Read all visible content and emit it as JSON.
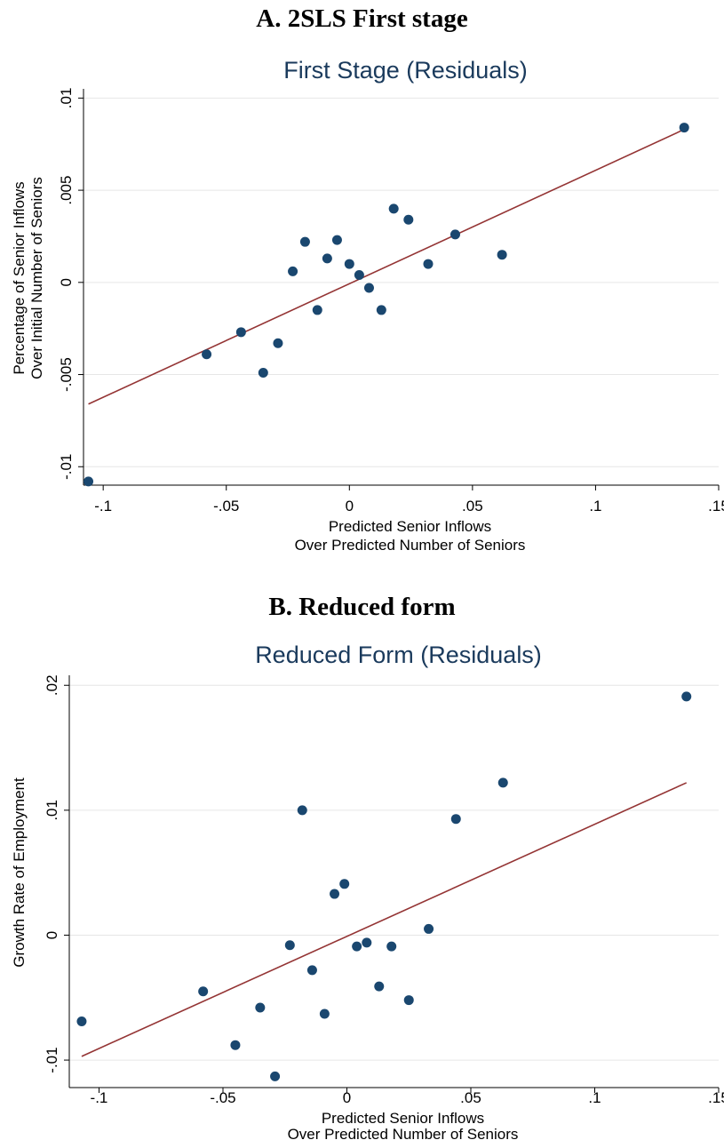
{
  "panels": [
    {
      "heading": "A. 2SLS First stage"
    },
    {
      "heading": "B. Reduced form"
    }
  ],
  "chart_data": [
    {
      "type": "scatter",
      "title": "First Stage (Residuals)",
      "xlabel": [
        "Predicted Senior Inflows",
        "Over Predicted Number of Seniors"
      ],
      "ylabel": [
        "Percentage of Senior Inflows",
        "Over Initial Number of Seniors"
      ],
      "xlim": [
        -0.108,
        0.15
      ],
      "ylim": [
        -0.011,
        0.0105
      ],
      "xticks": [
        -0.1,
        -0.05,
        0,
        0.05,
        0.1,
        0.15
      ],
      "xtick_labels": [
        "-.1",
        "-.05",
        "0",
        ".05",
        ".1",
        ".15"
      ],
      "yticks": [
        -0.01,
        -0.005,
        0,
        0.005,
        0.01
      ],
      "ytick_labels": [
        "-.01",
        "-.005",
        "0",
        ".005",
        ".01"
      ],
      "grid": true,
      "marker_color": "#1a476f",
      "fit_color": "#943434",
      "points": {
        "x": [
          -0.106,
          -0.058,
          -0.044,
          -0.035,
          -0.029,
          -0.023,
          -0.018,
          -0.013,
          -0.009,
          -0.005,
          0.0,
          0.004,
          0.008,
          0.013,
          0.018,
          0.024,
          0.032,
          0.043,
          0.062,
          0.136
        ],
        "y": [
          -0.0108,
          -0.0039,
          -0.0027,
          -0.0049,
          -0.0033,
          0.0006,
          0.0022,
          -0.0015,
          0.0013,
          0.0023,
          0.001,
          0.0004,
          -0.0003,
          -0.0015,
          0.004,
          0.0034,
          0.001,
          0.0026,
          0.0015,
          0.0084
        ]
      },
      "fit_line": {
        "x": [
          -0.106,
          0.136
        ],
        "y": [
          -0.0066,
          0.0083
        ]
      }
    },
    {
      "type": "scatter",
      "title": "Reduced Form (Residuals)",
      "xlabel": [
        "Predicted Senior Inflows",
        "Over Predicted Number of Seniors"
      ],
      "ylabel": [
        "Growth Rate of Employment"
      ],
      "xlim": [
        -0.112,
        0.15
      ],
      "ylim": [
        -0.0122,
        0.0208
      ],
      "xticks": [
        -0.1,
        -0.05,
        0,
        0.05,
        0.1,
        0.15
      ],
      "xtick_labels": [
        "-.1",
        "-.05",
        "0",
        ".05",
        ".1",
        ".15"
      ],
      "yticks": [
        -0.01,
        0,
        0.01,
        0.02
      ],
      "ytick_labels": [
        "-.01",
        "0",
        ".01",
        ".02"
      ],
      "grid": true,
      "marker_color": "#1a476f",
      "fit_color": "#943434",
      "points": {
        "x": [
          -0.107,
          -0.058,
          -0.045,
          -0.035,
          -0.029,
          -0.023,
          -0.018,
          -0.014,
          -0.009,
          -0.005,
          -0.001,
          0.004,
          0.008,
          0.013,
          0.018,
          0.025,
          0.033,
          0.044,
          0.063,
          0.137
        ],
        "y": [
          -0.0069,
          -0.0045,
          -0.0088,
          -0.0058,
          -0.0113,
          -0.0008,
          0.01,
          -0.0028,
          -0.0063,
          0.0033,
          0.0041,
          -0.0009,
          -0.0006,
          -0.0041,
          -0.0009,
          -0.0052,
          0.0005,
          0.0093,
          0.0122,
          0.0191
        ]
      },
      "fit_line": {
        "x": [
          -0.107,
          0.137
        ],
        "y": [
          -0.0097,
          0.0122
        ]
      }
    }
  ]
}
